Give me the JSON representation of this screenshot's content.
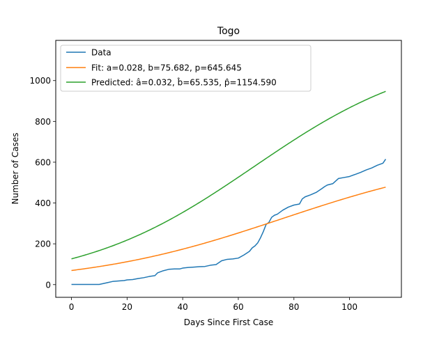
{
  "chart_data": {
    "type": "line",
    "title": "Togo",
    "xlabel": "Days Since First Case",
    "ylabel": "Number of Cases",
    "xlim": [
      -5.65,
      118.65
    ],
    "ylim": [
      -62.2,
      1197
    ],
    "xticks": [
      0,
      20,
      40,
      60,
      80,
      100
    ],
    "yticks": [
      0,
      200,
      400,
      600,
      800,
      1000
    ],
    "grid": false,
    "legend_position": "top-left",
    "series": [
      {
        "name": "Data",
        "color": "#1f77b4",
        "x": [
          0,
          5,
          10,
          13,
          15,
          17,
          19,
          20,
          22,
          24,
          26,
          28,
          30,
          31,
          33,
          35,
          37,
          39,
          40,
          42,
          44,
          46,
          48,
          50,
          52,
          54,
          56,
          58,
          60,
          62,
          64,
          65,
          66,
          67,
          68,
          69,
          70,
          71,
          72,
          73,
          74,
          76,
          78,
          80,
          82,
          83,
          84,
          86,
          88,
          90,
          91,
          92,
          94,
          96,
          98,
          100,
          102,
          104,
          106,
          108,
          110,
          112,
          113
        ],
        "y": [
          1,
          1,
          1,
          10,
          16,
          18,
          20,
          23,
          25,
          30,
          34,
          40,
          44,
          58,
          68,
          75,
          77,
          77,
          81,
          84,
          86,
          88,
          89,
          95,
          98,
          117,
          124,
          126,
          130,
          145,
          163,
          180,
          190,
          205,
          230,
          260,
          295,
          305,
          330,
          340,
          345,
          365,
          380,
          390,
          395,
          420,
          430,
          440,
          452,
          470,
          480,
          488,
          495,
          520,
          525,
          530,
          540,
          550,
          562,
          572,
          585,
          595,
          615
        ]
      },
      {
        "name": "Fit: a=0.028, b=75.682, p=645.645",
        "color": "#ff7f0e",
        "function": "logistic",
        "params": {
          "a": 0.028,
          "b": 75.682,
          "p": 645.645
        },
        "x_range": [
          0,
          113
        ]
      },
      {
        "name": "Predicted: â=0.032, b̂=65.535, p̂=1154.590",
        "color": "#2ca02c",
        "function": "logistic",
        "params": {
          "a": 0.032,
          "b": 65.535,
          "p": 1154.59
        },
        "x_range": [
          0,
          113
        ]
      }
    ]
  }
}
